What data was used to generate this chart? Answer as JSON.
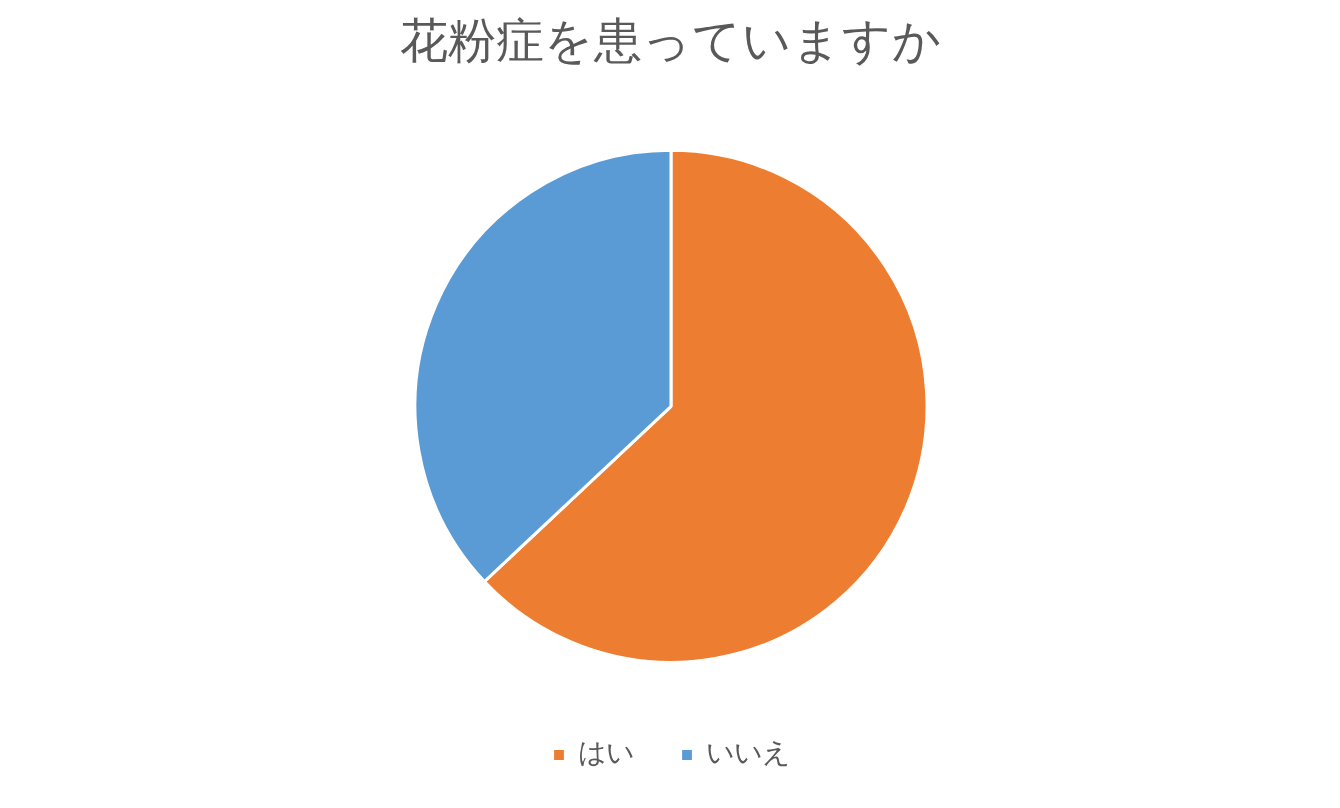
{
  "chart_data": {
    "type": "pie",
    "title": "花粉症を患っていますか",
    "categories": [
      "はい",
      "いいえ"
    ],
    "values": [
      63,
      37
    ],
    "colors": [
      "#ed7d31",
      "#5b9bd5"
    ],
    "legend": "bottom"
  }
}
